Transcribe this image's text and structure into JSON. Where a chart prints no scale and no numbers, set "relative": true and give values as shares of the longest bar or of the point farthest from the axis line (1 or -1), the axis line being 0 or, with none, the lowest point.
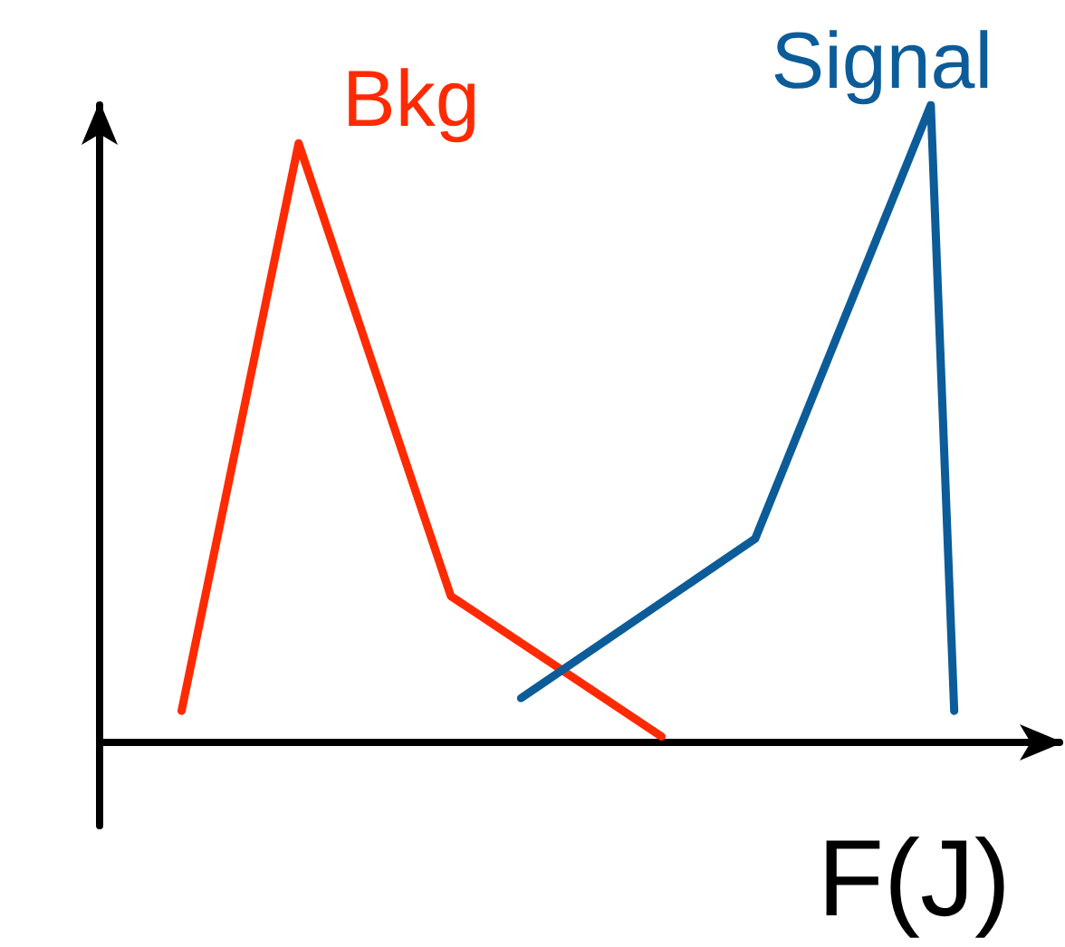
{
  "chart_data": {
    "type": "line",
    "relative": true,
    "xlabel": "F(J)",
    "grid": false,
    "legend": false,
    "marker": "none",
    "line_style": "solid",
    "categories": [
      null,
      null,
      null,
      null,
      null,
      null,
      null,
      null,
      null,
      null,
      null,
      null,
      null,
      null,
      null,
      null,
      null,
      null,
      null,
      null,
      null,
      null,
      null,
      null,
      null,
      null,
      null,
      null,
      null,
      null,
      null,
      null,
      null,
      null,
      null,
      null,
      null,
      null,
      null,
      null,
      null,
      null,
      null,
      null,
      null,
      null,
      null,
      null,
      null,
      null,
      null,
      null,
      null,
      null,
      null,
      null,
      null,
      null,
      null,
      null,
      null,
      null,
      null,
      null,
      null,
      null,
      null,
      null,
      null,
      null,
      null,
      null,
      null,
      null,
      null,
      null,
      null,
      null,
      null,
      null,
      null,
      null,
      null
    ],
    "series": [
      {
        "name": "Bkg",
        "color": "#ff2a00",
        "values": [
          null,
          null,
          null,
          null,
          null,
          null,
          null,
          0.05,
          null,
          null,
          null,
          null,
          null,
          null,
          null,
          null,
          null,
          0.94,
          null,
          null,
          null,
          null,
          null,
          null,
          null,
          null,
          null,
          null,
          null,
          null,
          0.23,
          null,
          null,
          null,
          null,
          null,
          null,
          null,
          null,
          null,
          null,
          null,
          null,
          null,
          null,
          null,
          null,
          null,
          0.01,
          null,
          null,
          null,
          null,
          null,
          null,
          null,
          null,
          null,
          null,
          null,
          null,
          null,
          null,
          null,
          null,
          null,
          null,
          null,
          null,
          null,
          null,
          null,
          null,
          null,
          null,
          null,
          null,
          null,
          null,
          null,
          null,
          null,
          null
        ]
      },
      {
        "name": "Signal",
        "color": "#0b5c99",
        "values": [
          null,
          null,
          null,
          null,
          null,
          null,
          null,
          null,
          null,
          null,
          null,
          null,
          null,
          null,
          null,
          null,
          null,
          null,
          null,
          null,
          null,
          null,
          null,
          null,
          null,
          null,
          null,
          null,
          null,
          null,
          null,
          null,
          null,
          null,
          null,
          null,
          0.07,
          null,
          null,
          null,
          null,
          null,
          null,
          null,
          null,
          null,
          null,
          null,
          null,
          null,
          null,
          null,
          null,
          null,
          null,
          null,
          0.32,
          null,
          null,
          null,
          null,
          null,
          null,
          null,
          null,
          null,
          null,
          null,
          null,
          null,
          null,
          1,
          null,
          0.05,
          null,
          null,
          null,
          null,
          null,
          null,
          null,
          null,
          null
        ]
      }
    ]
  }
}
